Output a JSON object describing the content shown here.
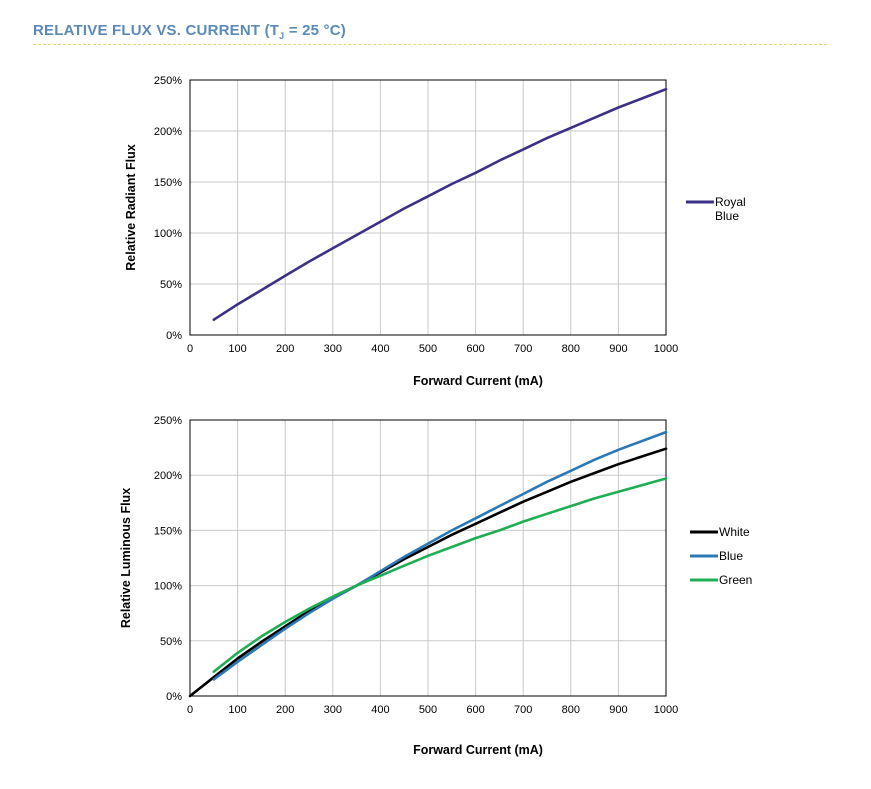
{
  "section": {
    "title_prefix": "RELATIVE FLUX VS. CURRENT (T",
    "title_sub": "J",
    "title_suffix": " = 25 °C)"
  },
  "colors": {
    "title": "#5b8ab8",
    "rule": "#e3d86a"
  },
  "chart_data": [
    {
      "type": "line",
      "xlabel": "Forward Current (mA)",
      "ylabel": "Relative Radiant Flux",
      "xlim": [
        0,
        1000
      ],
      "ylim": [
        0,
        250
      ],
      "xticks": [
        "0",
        "100",
        "200",
        "300",
        "400",
        "500",
        "600",
        "700",
        "800",
        "900",
        "1000"
      ],
      "yticks": [
        "0%",
        "50%",
        "100%",
        "150%",
        "200%",
        "250%"
      ],
      "grid": true,
      "legend_position": "right",
      "series": [
        {
          "name": "Royal Blue",
          "legend_lines": [
            "Royal",
            "Blue"
          ],
          "color": "#3b3185",
          "x": [
            50,
            100,
            150,
            200,
            250,
            300,
            350,
            400,
            450,
            500,
            550,
            600,
            650,
            700,
            750,
            800,
            850,
            900,
            950,
            1000
          ],
          "y": [
            15,
            30,
            44,
            58,
            72,
            85,
            98,
            111,
            124,
            136,
            148,
            159,
            171,
            182,
            193,
            203,
            213,
            223,
            232,
            241
          ]
        }
      ]
    },
    {
      "type": "line",
      "xlabel": "Forward Current (mA)",
      "ylabel": "Relative Luminous Flux",
      "xlim": [
        0,
        1000
      ],
      "ylim": [
        0,
        250
      ],
      "xticks": [
        "0",
        "100",
        "200",
        "300",
        "400",
        "500",
        "600",
        "700",
        "800",
        "900",
        "1000"
      ],
      "yticks": [
        "0%",
        "50%",
        "100%",
        "150%",
        "200%",
        "250%"
      ],
      "grid": true,
      "legend_position": "right",
      "series": [
        {
          "name": "White",
          "legend_lines": [
            "White"
          ],
          "color": "#000000",
          "x": [
            0,
            50,
            100,
            150,
            200,
            250,
            300,
            350,
            400,
            450,
            500,
            550,
            600,
            650,
            700,
            750,
            800,
            850,
            900,
            950,
            1000
          ],
          "y": [
            0,
            17,
            34,
            49,
            63,
            77,
            89,
            100,
            112,
            124,
            135,
            146,
            156,
            166,
            176,
            185,
            194,
            202,
            210,
            217,
            224
          ]
        },
        {
          "name": "Blue",
          "legend_lines": [
            "Blue"
          ],
          "color": "#2c78b4",
          "x": [
            50,
            100,
            150,
            200,
            250,
            300,
            350,
            400,
            450,
            500,
            550,
            600,
            650,
            700,
            750,
            800,
            850,
            900,
            950,
            1000
          ],
          "y": [
            15,
            31,
            46,
            61,
            75,
            88,
            100,
            113,
            126,
            138,
            150,
            161,
            172,
            183,
            194,
            204,
            214,
            223,
            231,
            239
          ]
        },
        {
          "name": "Green",
          "legend_lines": [
            "Green"
          ],
          "color": "#1fae53",
          "x": [
            50,
            100,
            150,
            200,
            250,
            300,
            350,
            400,
            450,
            500,
            550,
            600,
            650,
            700,
            750,
            800,
            850,
            900,
            950,
            1000
          ],
          "y": [
            22,
            39,
            54,
            67,
            79,
            90,
            100,
            109,
            118,
            127,
            135,
            143,
            150,
            158,
            165,
            172,
            179,
            185,
            191,
            197
          ]
        }
      ]
    }
  ]
}
